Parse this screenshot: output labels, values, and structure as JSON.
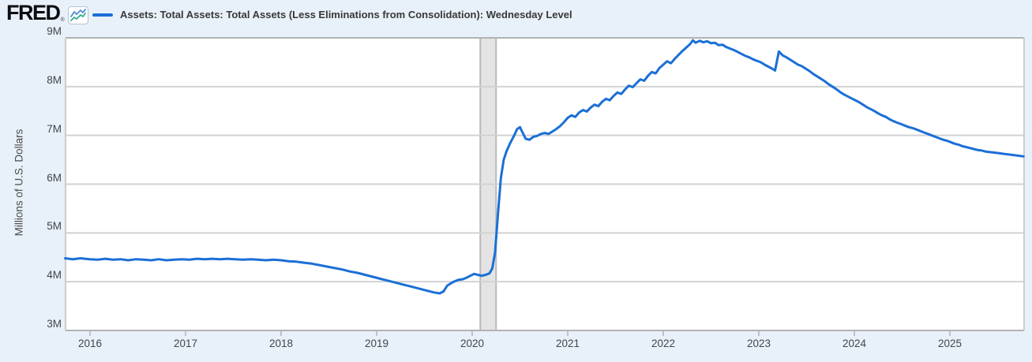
{
  "header": {
    "logo_text": "FRED",
    "registered_mark": "®",
    "legend": {
      "series_label": "Assets: Total Assets: Total Assets (Less Eliminations from Consolidation): Wednesday Level",
      "series_color": "#1b6fd6"
    }
  },
  "colors": {
    "page_background": "#e8f1fa",
    "plot_background": "#ffffff",
    "line_blue": "#1b6fd6",
    "gridline": "#d2d2d2",
    "plot_border": "#b3b3b3",
    "side_border": "#cccccc",
    "recession_band_fill": "#e4e4e4",
    "recession_band_edge": "#b9b9b9",
    "axis_text": "#444449",
    "icon_blue": "#4a8fd3",
    "icon_green": "#34ad8a"
  },
  "chart_data": {
    "type": "line",
    "title": "Assets: Total Assets: Total Assets (Less Eliminations from Consolidation): Wednesday Level",
    "ylabel": "Millions of U.S. Dollars",
    "y_unit_suffix": "M",
    "grid": "horizontal",
    "legend_position": "top-left",
    "ylim": [
      3,
      9
    ],
    "xlim": [
      2015.74,
      2025.78
    ],
    "y_ticks": [
      9,
      8,
      7,
      6,
      5,
      4,
      3
    ],
    "x_ticks": [
      2016,
      2017,
      2018,
      2019,
      2020,
      2021,
      2022,
      2023,
      2024,
      2025
    ],
    "recession_band": {
      "start_year": 2020.085,
      "end_year": 2020.25
    },
    "series": [
      {
        "name": "Assets: Total Assets: Total Assets (Less Eliminations from Consolidation): Wednesday Level",
        "color": "#1b6fd6",
        "points": [
          [
            2015.74,
            4.48
          ],
          [
            2015.82,
            4.46
          ],
          [
            2015.9,
            4.48
          ],
          [
            2016.0,
            4.46
          ],
          [
            2016.08,
            4.45
          ],
          [
            2016.16,
            4.47
          ],
          [
            2016.24,
            4.45
          ],
          [
            2016.32,
            4.46
          ],
          [
            2016.4,
            4.44
          ],
          [
            2016.48,
            4.46
          ],
          [
            2016.56,
            4.45
          ],
          [
            2016.64,
            4.44
          ],
          [
            2016.72,
            4.46
          ],
          [
            2016.8,
            4.44
          ],
          [
            2016.88,
            4.45
          ],
          [
            2016.96,
            4.46
          ],
          [
            2017.04,
            4.45
          ],
          [
            2017.12,
            4.47
          ],
          [
            2017.2,
            4.46
          ],
          [
            2017.28,
            4.47
          ],
          [
            2017.36,
            4.46
          ],
          [
            2017.44,
            4.47
          ],
          [
            2017.52,
            4.46
          ],
          [
            2017.6,
            4.45
          ],
          [
            2017.68,
            4.46
          ],
          [
            2017.76,
            4.45
          ],
          [
            2017.84,
            4.44
          ],
          [
            2017.92,
            4.45
          ],
          [
            2018.0,
            4.44
          ],
          [
            2018.08,
            4.42
          ],
          [
            2018.16,
            4.41
          ],
          [
            2018.24,
            4.39
          ],
          [
            2018.32,
            4.37
          ],
          [
            2018.4,
            4.34
          ],
          [
            2018.48,
            4.31
          ],
          [
            2018.56,
            4.28
          ],
          [
            2018.64,
            4.25
          ],
          [
            2018.72,
            4.21
          ],
          [
            2018.8,
            4.18
          ],
          [
            2018.88,
            4.14
          ],
          [
            2018.96,
            4.1
          ],
          [
            2019.04,
            4.06
          ],
          [
            2019.12,
            4.02
          ],
          [
            2019.2,
            3.98
          ],
          [
            2019.28,
            3.94
          ],
          [
            2019.36,
            3.9
          ],
          [
            2019.44,
            3.86
          ],
          [
            2019.52,
            3.82
          ],
          [
            2019.6,
            3.78
          ],
          [
            2019.66,
            3.76
          ],
          [
            2019.7,
            3.8
          ],
          [
            2019.74,
            3.92
          ],
          [
            2019.78,
            3.97
          ],
          [
            2019.82,
            4.01
          ],
          [
            2019.86,
            4.04
          ],
          [
            2019.9,
            4.05
          ],
          [
            2019.94,
            4.08
          ],
          [
            2019.98,
            4.12
          ],
          [
            2020.02,
            4.16
          ],
          [
            2020.06,
            4.14
          ],
          [
            2020.1,
            4.12
          ],
          [
            2020.14,
            4.14
          ],
          [
            2020.18,
            4.17
          ],
          [
            2020.21,
            4.27
          ],
          [
            2020.24,
            4.6
          ],
          [
            2020.27,
            5.4
          ],
          [
            2020.3,
            6.12
          ],
          [
            2020.33,
            6.5
          ],
          [
            2020.36,
            6.68
          ],
          [
            2020.4,
            6.85
          ],
          [
            2020.44,
            7.0
          ],
          [
            2020.47,
            7.13
          ],
          [
            2020.5,
            7.17
          ],
          [
            2020.53,
            7.05
          ],
          [
            2020.56,
            6.93
          ],
          [
            2020.6,
            6.91
          ],
          [
            2020.64,
            6.97
          ],
          [
            2020.68,
            6.99
          ],
          [
            2020.72,
            7.03
          ],
          [
            2020.76,
            7.05
          ],
          [
            2020.8,
            7.03
          ],
          [
            2020.84,
            7.08
          ],
          [
            2020.88,
            7.13
          ],
          [
            2020.92,
            7.19
          ],
          [
            2020.96,
            7.27
          ],
          [
            2021.0,
            7.36
          ],
          [
            2021.04,
            7.41
          ],
          [
            2021.08,
            7.38
          ],
          [
            2021.12,
            7.47
          ],
          [
            2021.16,
            7.52
          ],
          [
            2021.2,
            7.49
          ],
          [
            2021.24,
            7.57
          ],
          [
            2021.28,
            7.63
          ],
          [
            2021.32,
            7.6
          ],
          [
            2021.36,
            7.69
          ],
          [
            2021.4,
            7.75
          ],
          [
            2021.44,
            7.72
          ],
          [
            2021.48,
            7.81
          ],
          [
            2021.52,
            7.88
          ],
          [
            2021.56,
            7.85
          ],
          [
            2021.6,
            7.94
          ],
          [
            2021.64,
            8.02
          ],
          [
            2021.68,
            7.99
          ],
          [
            2021.72,
            8.07
          ],
          [
            2021.76,
            8.15
          ],
          [
            2021.8,
            8.12
          ],
          [
            2021.84,
            8.22
          ],
          [
            2021.88,
            8.3
          ],
          [
            2021.92,
            8.27
          ],
          [
            2021.96,
            8.38
          ],
          [
            2022.0,
            8.45
          ],
          [
            2022.04,
            8.52
          ],
          [
            2022.08,
            8.48
          ],
          [
            2022.12,
            8.57
          ],
          [
            2022.16,
            8.65
          ],
          [
            2022.2,
            8.73
          ],
          [
            2022.24,
            8.8
          ],
          [
            2022.28,
            8.87
          ],
          [
            2022.31,
            8.95
          ],
          [
            2022.34,
            8.9
          ],
          [
            2022.38,
            8.94
          ],
          [
            2022.42,
            8.91
          ],
          [
            2022.46,
            8.93
          ],
          [
            2022.5,
            8.89
          ],
          [
            2022.54,
            8.9
          ],
          [
            2022.58,
            8.85
          ],
          [
            2022.62,
            8.86
          ],
          [
            2022.66,
            8.81
          ],
          [
            2022.7,
            8.78
          ],
          [
            2022.74,
            8.75
          ],
          [
            2022.78,
            8.71
          ],
          [
            2022.82,
            8.67
          ],
          [
            2022.86,
            8.63
          ],
          [
            2022.9,
            8.6
          ],
          [
            2022.94,
            8.56
          ],
          [
            2022.98,
            8.53
          ],
          [
            2023.02,
            8.5
          ],
          [
            2023.06,
            8.45
          ],
          [
            2023.1,
            8.41
          ],
          [
            2023.14,
            8.37
          ],
          [
            2023.17,
            8.33
          ],
          [
            2023.21,
            8.72
          ],
          [
            2023.25,
            8.64
          ],
          [
            2023.29,
            8.6
          ],
          [
            2023.33,
            8.55
          ],
          [
            2023.37,
            8.5
          ],
          [
            2023.41,
            8.45
          ],
          [
            2023.45,
            8.42
          ],
          [
            2023.49,
            8.37
          ],
          [
            2023.53,
            8.32
          ],
          [
            2023.57,
            8.26
          ],
          [
            2023.61,
            8.21
          ],
          [
            2023.65,
            8.16
          ],
          [
            2023.69,
            8.11
          ],
          [
            2023.73,
            8.05
          ],
          [
            2023.77,
            8.0
          ],
          [
            2023.81,
            7.95
          ],
          [
            2023.85,
            7.89
          ],
          [
            2023.89,
            7.84
          ],
          [
            2023.93,
            7.8
          ],
          [
            2023.97,
            7.76
          ],
          [
            2024.01,
            7.72
          ],
          [
            2024.05,
            7.68
          ],
          [
            2024.09,
            7.63
          ],
          [
            2024.13,
            7.58
          ],
          [
            2024.17,
            7.54
          ],
          [
            2024.21,
            7.5
          ],
          [
            2024.25,
            7.45
          ],
          [
            2024.29,
            7.41
          ],
          [
            2024.33,
            7.38
          ],
          [
            2024.37,
            7.33
          ],
          [
            2024.41,
            7.29
          ],
          [
            2024.45,
            7.26
          ],
          [
            2024.49,
            7.23
          ],
          [
            2024.53,
            7.2
          ],
          [
            2024.57,
            7.17
          ],
          [
            2024.61,
            7.15
          ],
          [
            2024.65,
            7.12
          ],
          [
            2024.69,
            7.09
          ],
          [
            2024.73,
            7.06
          ],
          [
            2024.77,
            7.03
          ],
          [
            2024.81,
            7.0
          ],
          [
            2024.85,
            6.97
          ],
          [
            2024.89,
            6.94
          ],
          [
            2024.93,
            6.91
          ],
          [
            2024.97,
            6.89
          ],
          [
            2025.01,
            6.86
          ],
          [
            2025.05,
            6.83
          ],
          [
            2025.09,
            6.81
          ],
          [
            2025.13,
            6.78
          ],
          [
            2025.17,
            6.76
          ],
          [
            2025.21,
            6.74
          ],
          [
            2025.25,
            6.72
          ],
          [
            2025.29,
            6.7
          ],
          [
            2025.33,
            6.69
          ],
          [
            2025.37,
            6.67
          ],
          [
            2025.41,
            6.66
          ],
          [
            2025.45,
            6.65
          ],
          [
            2025.49,
            6.64
          ],
          [
            2025.53,
            6.63
          ],
          [
            2025.57,
            6.62
          ],
          [
            2025.61,
            6.61
          ],
          [
            2025.65,
            6.6
          ],
          [
            2025.69,
            6.59
          ],
          [
            2025.73,
            6.58
          ],
          [
            2025.77,
            6.57
          ]
        ]
      }
    ]
  }
}
